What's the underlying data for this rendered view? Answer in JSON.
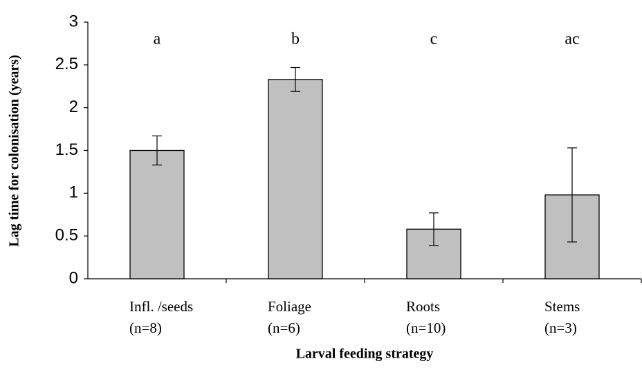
{
  "chart_data": {
    "type": "bar",
    "x_label": "Larval feeding strategy",
    "y_label": "Lag time for colonisation (years)",
    "categories": [
      "Infl. /seeds",
      "Foliage",
      "Roots",
      "Stems"
    ],
    "sample_sizes": [
      "(n=8)",
      "(n=6)",
      "(n=10)",
      "(n=3)"
    ],
    "significance_labels": [
      "a",
      "b",
      "c",
      "ac"
    ],
    "values": [
      1.5,
      2.33,
      0.58,
      0.98
    ],
    "errors": [
      0.17,
      0.14,
      0.19,
      0.55
    ],
    "color": "#c0c0c0",
    "ylim": [
      0,
      3
    ],
    "yticks": [
      0,
      0.5,
      1,
      1.5,
      2,
      2.5,
      3
    ],
    "grid": false
  }
}
